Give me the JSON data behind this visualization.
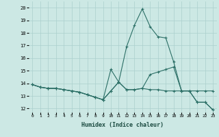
{
  "xlabel": "Humidex (Indice chaleur)",
  "x_ticks": [
    0,
    1,
    2,
    3,
    4,
    5,
    6,
    7,
    8,
    9,
    10,
    11,
    12,
    13,
    14,
    15,
    16,
    17,
    18,
    19,
    20,
    21,
    22,
    23
  ],
  "ylim": [
    11.7,
    20.5
  ],
  "xlim": [
    -0.5,
    23.5
  ],
  "y_ticks": [
    12,
    13,
    14,
    15,
    16,
    17,
    18,
    19,
    20
  ],
  "bg_color": "#cce8e4",
  "grid_color": "#aacfcc",
  "line_color": "#2a6e65",
  "line1_y": [
    13.9,
    13.7,
    13.6,
    13.6,
    13.5,
    13.4,
    13.3,
    13.1,
    12.9,
    12.7,
    15.1,
    14.1,
    16.9,
    18.6,
    19.9,
    18.5,
    17.7,
    17.6,
    15.7,
    13.4,
    13.4,
    13.4,
    13.4,
    13.4
  ],
  "line2_y": [
    13.9,
    13.7,
    13.6,
    13.6,
    13.5,
    13.4,
    13.3,
    13.1,
    12.9,
    12.7,
    13.4,
    14.1,
    13.5,
    13.5,
    13.6,
    14.7,
    14.9,
    15.1,
    15.3,
    13.4,
    13.4,
    12.5,
    12.5,
    11.9
  ],
  "line3_y": [
    13.9,
    13.7,
    13.6,
    13.6,
    13.5,
    13.4,
    13.3,
    13.1,
    12.9,
    12.7,
    13.4,
    14.1,
    13.5,
    13.5,
    13.6,
    13.5,
    13.5,
    13.4,
    13.4,
    13.4,
    13.4,
    12.5,
    12.5,
    11.9
  ]
}
